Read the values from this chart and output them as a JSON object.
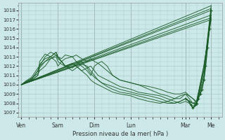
{
  "title": "",
  "xlabel": "Pression niveau de la mer( hPa )",
  "bg_color": "#cce8e8",
  "grid_color": "#aacccc",
  "line_color": "#1a5c28",
  "ylim": [
    1006.5,
    1018.8
  ],
  "yticks": [
    1007,
    1008,
    1009,
    1010,
    1011,
    1012,
    1013,
    1014,
    1015,
    1016,
    1017,
    1018
  ],
  "day_labels": [
    "Ven",
    "Sam",
    "Dim",
    "Lun",
    "Mar",
    "Me"
  ],
  "day_x": [
    0,
    1,
    2,
    3,
    4.5,
    5.2
  ],
  "xlim": [
    -0.08,
    5.5
  ],
  "series": [
    [
      0,
      0.12,
      0.28,
      0.45,
      0.5,
      0.65,
      0.8,
      0.95,
      1.0,
      1.1,
      1.2,
      1.4,
      1.5,
      1.65,
      1.8,
      1.9,
      2.0,
      2.1,
      2.2,
      2.35,
      2.5,
      2.7,
      3.0,
      3.2,
      3.5,
      3.8,
      4.0,
      4.2,
      4.35,
      4.5,
      4.6,
      4.7,
      4.8,
      5.0,
      5.2
    ],
    [
      1010.0,
      1010.3,
      1010.6,
      1011.5,
      1012.0,
      1013.0,
      1013.5,
      1013.2,
      1012.8,
      1012.5,
      1012.8,
      1013.0,
      1013.2,
      1012.8,
      1012.5,
      1012.8,
      1012.5,
      1012.3,
      1012.0,
      1011.5,
      1011.0,
      1010.5,
      1010.2,
      1010.0,
      1009.8,
      1009.5,
      1009.2,
      1009.0,
      1009.0,
      1009.2,
      1008.8,
      1008.5,
      1008.0,
      1012.0,
      1017.0
    ],
    [
      0,
      0.12,
      0.28,
      0.45,
      0.5,
      0.65,
      0.8,
      0.95,
      1.0,
      1.1,
      1.2,
      1.4,
      1.5,
      1.65,
      1.8,
      1.9,
      2.0,
      2.1,
      2.2,
      2.35,
      2.5,
      2.7,
      3.0,
      3.2,
      3.5,
      3.8,
      4.0,
      4.2,
      4.35,
      4.5,
      4.6,
      4.7,
      4.8,
      5.0,
      5.2
    ],
    [
      1010.0,
      1010.2,
      1010.5,
      1011.0,
      1012.5,
      1013.3,
      1013.0,
      1013.5,
      1013.0,
      1012.8,
      1013.2,
      1013.0,
      1012.5,
      1012.0,
      1011.5,
      1011.0,
      1012.0,
      1012.3,
      1012.5,
      1012.0,
      1011.0,
      1010.5,
      1010.2,
      1010.0,
      1009.5,
      1009.0,
      1008.8,
      1008.5,
      1008.5,
      1009.0,
      1008.5,
      1008.0,
      1007.8,
      1011.5,
      1018.0
    ],
    [
      0,
      0.12,
      0.28,
      0.45,
      0.5,
      0.65,
      0.8,
      0.95,
      1.0,
      1.1,
      1.2,
      1.4,
      1.5,
      1.65,
      1.8,
      1.9,
      2.0,
      2.1,
      2.2,
      2.35,
      2.5,
      2.7,
      3.0,
      3.2,
      3.5,
      3.8,
      4.0,
      4.2,
      4.35,
      4.5,
      4.6,
      4.7,
      4.8,
      5.0,
      5.2
    ],
    [
      1010.0,
      1010.4,
      1010.8,
      1011.8,
      1012.0,
      1012.5,
      1013.0,
      1012.5,
      1012.0,
      1012.5,
      1012.0,
      1012.3,
      1012.0,
      1011.5,
      1011.8,
      1012.0,
      1011.5,
      1011.0,
      1010.8,
      1010.5,
      1010.2,
      1009.8,
      1009.5,
      1009.2,
      1009.0,
      1008.8,
      1008.5,
      1008.2,
      1008.0,
      1008.2,
      1008.0,
      1007.5,
      1007.8,
      1011.0,
      1018.2
    ],
    [
      0,
      0.12,
      0.28,
      0.45,
      0.5,
      0.65,
      0.8,
      0.95,
      1.0,
      1.1,
      1.2,
      1.4,
      1.5,
      1.65,
      1.8,
      1.9,
      2.0,
      2.1,
      2.2,
      2.35,
      2.5,
      2.7,
      3.0,
      3.2,
      3.5,
      3.8,
      4.0,
      4.2,
      4.35,
      4.5,
      4.6,
      4.7,
      4.8,
      5.0,
      5.2
    ],
    [
      1010.0,
      1010.3,
      1010.7,
      1011.2,
      1011.5,
      1012.0,
      1012.8,
      1013.2,
      1013.0,
      1012.5,
      1012.0,
      1011.8,
      1012.2,
      1012.5,
      1011.8,
      1011.2,
      1010.8,
      1010.5,
      1010.2,
      1010.0,
      1009.8,
      1009.5,
      1009.2,
      1009.0,
      1008.8,
      1008.5,
      1008.2,
      1008.0,
      1008.2,
      1008.5,
      1008.2,
      1008.0,
      1008.0,
      1010.5,
      1017.5
    ],
    [
      0,
      0.12,
      0.28,
      0.45,
      0.5,
      0.65,
      0.8,
      0.95,
      1.0,
      1.1,
      1.2,
      1.4,
      1.5,
      1.65,
      1.8,
      1.9,
      2.0,
      2.1,
      2.2,
      2.35,
      2.5,
      2.7,
      3.0,
      3.2,
      3.5,
      3.8,
      4.0,
      4.2,
      4.35,
      4.5,
      4.6,
      4.7,
      4.8,
      5.0,
      5.2
    ],
    [
      1010.0,
      1010.2,
      1010.5,
      1011.0,
      1011.8,
      1012.5,
      1012.8,
      1013.0,
      1012.5,
      1012.2,
      1012.0,
      1011.5,
      1011.8,
      1012.2,
      1012.0,
      1011.5,
      1011.0,
      1010.5,
      1010.2,
      1009.8,
      1009.5,
      1009.2,
      1009.0,
      1008.8,
      1008.5,
      1008.2,
      1008.0,
      1008.0,
      1008.2,
      1008.5,
      1008.2,
      1008.0,
      1008.2,
      1012.0,
      1017.2
    ],
    [
      0,
      0.12,
      0.28,
      0.45,
      0.5,
      0.65,
      0.8,
      0.95,
      1.0,
      1.1,
      1.2,
      1.4,
      1.5,
      1.65,
      1.8,
      1.9,
      2.0,
      2.1,
      2.2,
      2.35,
      2.5,
      2.7,
      3.0,
      3.2,
      3.5,
      3.8,
      4.0,
      4.2,
      4.35,
      4.5,
      4.6,
      4.7,
      4.8,
      5.0,
      5.2
    ],
    [
      1010.0,
      1010.3,
      1010.6,
      1011.5,
      1012.2,
      1012.8,
      1013.0,
      1013.5,
      1013.0,
      1012.5,
      1012.0,
      1012.3,
      1012.0,
      1011.5,
      1011.0,
      1010.5,
      1010.2,
      1010.0,
      1009.8,
      1009.5,
      1009.2,
      1009.0,
      1008.8,
      1008.5,
      1008.2,
      1008.0,
      1008.2,
      1008.5,
      1008.8,
      1009.0,
      1008.8,
      1008.5,
      1008.2,
      1011.5,
      1018.5
    ]
  ],
  "straight_lines": [
    {
      "x": [
        0,
        5.2
      ],
      "y": [
        1010.0,
        1018.0
      ]
    },
    {
      "x": [
        0,
        5.2
      ],
      "y": [
        1010.0,
        1018.2
      ]
    },
    {
      "x": [
        0,
        5.2
      ],
      "y": [
        1010.0,
        1017.0
      ]
    },
    {
      "x": [
        0,
        5.2
      ],
      "y": [
        1010.0,
        1017.2
      ]
    },
    {
      "x": [
        0,
        5.2
      ],
      "y": [
        1010.0,
        1017.5
      ]
    },
    {
      "x": [
        0,
        5.2
      ],
      "y": [
        1010.0,
        1018.5
      ]
    }
  ],
  "dotted_x": [
    4.5,
    4.6,
    4.65,
    4.7,
    4.75,
    4.8,
    4.85,
    4.9,
    4.95,
    5.0,
    5.05,
    5.1,
    5.15,
    5.2
  ],
  "dotted_y": [
    1008.5,
    1008.2,
    1007.8,
    1007.5,
    1007.8,
    1008.0,
    1008.5,
    1009.0,
    1009.5,
    1010.5,
    1012.0,
    1014.0,
    1016.0,
    1018.0
  ]
}
